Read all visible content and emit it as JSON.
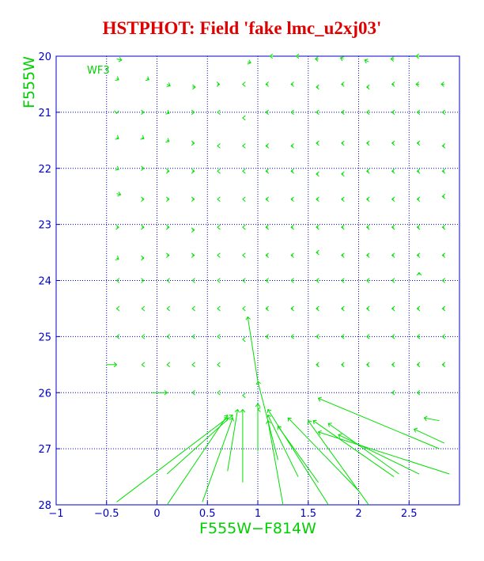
{
  "title": "HSTPHOT: Field 'fake lmc_u2xj03'",
  "colors": {
    "title": "#e00000",
    "axes": "#0000c8",
    "data": "#00e000",
    "labels": "#00d000"
  },
  "chart_data": {
    "type": "scatter",
    "panel_label": "WF3",
    "xlabel": "F555W−F814W",
    "ylabel": "F555W",
    "xlim": [
      -1,
      3
    ],
    "ylim": [
      28,
      20
    ],
    "x_ticks": [
      "−1",
      "−0.5",
      "0",
      "0.5",
      "1",
      "1.5",
      "2",
      "2.5"
    ],
    "y_ticks": [
      "20",
      "21",
      "22",
      "23",
      "24",
      "25",
      "26",
      "27",
      "28"
    ],
    "grid": true,
    "marker": "chevron",
    "vectors": [
      {
        "x": -0.4,
        "y": 20.05,
        "dx": 0.05,
        "dy": 0.02
      },
      {
        "x": 0.9,
        "y": 20.1,
        "dx": 0.03,
        "dy": 0.02
      },
      {
        "x": 1.15,
        "y": 20.0,
        "dx": -0.03,
        "dy": 0.0
      },
      {
        "x": 1.4,
        "y": 20.0,
        "dx": -0.02,
        "dy": 0.0
      },
      {
        "x": 1.6,
        "y": 20.05,
        "dx": -0.03,
        "dy": 0.0
      },
      {
        "x": 1.85,
        "y": 20.05,
        "dx": -0.03,
        "dy": -0.02
      },
      {
        "x": 2.1,
        "y": 20.1,
        "dx": -0.04,
        "dy": -0.03
      },
      {
        "x": 2.35,
        "y": 20.05,
        "dx": -0.03,
        "dy": 0.0
      },
      {
        "x": 2.6,
        "y": 20.0,
        "dx": -0.03,
        "dy": 0.0
      },
      {
        "x": -0.4,
        "y": 20.4,
        "dx": 0.02,
        "dy": 0.02
      },
      {
        "x": -0.1,
        "y": 20.4,
        "dx": 0.02,
        "dy": 0.02
      },
      {
        "x": 0.1,
        "y": 20.5,
        "dx": 0.03,
        "dy": 0.03
      },
      {
        "x": 0.35,
        "y": 20.55,
        "dx": 0.03,
        "dy": 0.0
      },
      {
        "x": 0.6,
        "y": 20.5,
        "dx": 0.02,
        "dy": 0.0
      },
      {
        "x": 0.85,
        "y": 20.5,
        "dx": 0.0,
        "dy": 0.0
      },
      {
        "x": 1.1,
        "y": 20.5,
        "dx": -0.02,
        "dy": 0.0
      },
      {
        "x": 1.35,
        "y": 20.5,
        "dx": -0.02,
        "dy": 0.0
      },
      {
        "x": 1.6,
        "y": 20.55,
        "dx": -0.02,
        "dy": 0.0
      },
      {
        "x": 1.85,
        "y": 20.5,
        "dx": -0.02,
        "dy": 0.0
      },
      {
        "x": 2.1,
        "y": 20.55,
        "dx": -0.02,
        "dy": 0.0
      },
      {
        "x": 2.35,
        "y": 20.5,
        "dx": -0.02,
        "dy": 0.0
      },
      {
        "x": 2.6,
        "y": 20.5,
        "dx": -0.03,
        "dy": 0.0
      },
      {
        "x": 2.85,
        "y": 20.5,
        "dx": -0.03,
        "dy": 0.0
      },
      {
        "x": -0.4,
        "y": 21.0,
        "dx": 0.0,
        "dy": 0.02
      },
      {
        "x": -0.15,
        "y": 21.0,
        "dx": 0.02,
        "dy": 0.0
      },
      {
        "x": 0.1,
        "y": 21.0,
        "dx": 0.02,
        "dy": 0.02
      },
      {
        "x": 0.35,
        "y": 21.0,
        "dx": 0.02,
        "dy": 0.0
      },
      {
        "x": 0.6,
        "y": 21.0,
        "dx": 0.0,
        "dy": 0.0
      },
      {
        "x": 0.85,
        "y": 21.1,
        "dx": 0.0,
        "dy": 0.0
      },
      {
        "x": 1.1,
        "y": 21.0,
        "dx": -0.02,
        "dy": 0.0
      },
      {
        "x": 1.35,
        "y": 21.0,
        "dx": -0.02,
        "dy": 0.0
      },
      {
        "x": 1.6,
        "y": 21.0,
        "dx": -0.02,
        "dy": 0.0
      },
      {
        "x": 1.85,
        "y": 21.0,
        "dx": -0.02,
        "dy": 0.0
      },
      {
        "x": 2.1,
        "y": 21.0,
        "dx": -0.02,
        "dy": 0.0
      },
      {
        "x": 2.35,
        "y": 21.0,
        "dx": -0.02,
        "dy": 0.0
      },
      {
        "x": 2.6,
        "y": 21.0,
        "dx": -0.02,
        "dy": 0.0
      },
      {
        "x": 2.85,
        "y": 21.0,
        "dx": -0.02,
        "dy": 0.0
      },
      {
        "x": -0.4,
        "y": 21.45,
        "dx": 0.02,
        "dy": 0.02
      },
      {
        "x": -0.15,
        "y": 21.45,
        "dx": 0.02,
        "dy": 0.02
      },
      {
        "x": 0.1,
        "y": 21.5,
        "dx": 0.02,
        "dy": 0.02
      },
      {
        "x": 0.35,
        "y": 21.55,
        "dx": 0.02,
        "dy": 0.0
      },
      {
        "x": 0.6,
        "y": 21.6,
        "dx": 0.0,
        "dy": 0.0
      },
      {
        "x": 0.85,
        "y": 21.6,
        "dx": 0.0,
        "dy": 0.0
      },
      {
        "x": 1.1,
        "y": 21.6,
        "dx": -0.02,
        "dy": 0.0
      },
      {
        "x": 1.35,
        "y": 21.6,
        "dx": -0.02,
        "dy": 0.0
      },
      {
        "x": 1.6,
        "y": 21.55,
        "dx": -0.02,
        "dy": 0.0
      },
      {
        "x": 1.85,
        "y": 21.55,
        "dx": -0.02,
        "dy": 0.0
      },
      {
        "x": 2.1,
        "y": 21.55,
        "dx": -0.02,
        "dy": 0.0
      },
      {
        "x": 2.35,
        "y": 21.55,
        "dx": -0.02,
        "dy": 0.0
      },
      {
        "x": 2.6,
        "y": 21.55,
        "dx": -0.02,
        "dy": 0.0
      },
      {
        "x": 2.85,
        "y": 21.6,
        "dx": -0.02,
        "dy": 0.0
      },
      {
        "x": -0.4,
        "y": 22.0,
        "dx": 0.02,
        "dy": 0.02
      },
      {
        "x": -0.15,
        "y": 22.0,
        "dx": 0.02,
        "dy": 0.0
      },
      {
        "x": 0.1,
        "y": 22.05,
        "dx": 0.02,
        "dy": 0.0
      },
      {
        "x": 0.35,
        "y": 22.05,
        "dx": 0.02,
        "dy": 0.0
      },
      {
        "x": 0.6,
        "y": 22.05,
        "dx": 0.0,
        "dy": 0.0
      },
      {
        "x": 0.85,
        "y": 22.05,
        "dx": 0.0,
        "dy": 0.0
      },
      {
        "x": 1.1,
        "y": 22.05,
        "dx": -0.02,
        "dy": 0.0
      },
      {
        "x": 1.35,
        "y": 22.05,
        "dx": -0.02,
        "dy": 0.0
      },
      {
        "x": 1.6,
        "y": 22.1,
        "dx": -0.02,
        "dy": 0.0
      },
      {
        "x": 1.85,
        "y": 22.1,
        "dx": -0.02,
        "dy": 0.0
      },
      {
        "x": 2.1,
        "y": 22.05,
        "dx": -0.02,
        "dy": 0.0
      },
      {
        "x": 2.35,
        "y": 22.05,
        "dx": -0.02,
        "dy": 0.0
      },
      {
        "x": 2.6,
        "y": 22.05,
        "dx": -0.02,
        "dy": 0.0
      },
      {
        "x": 2.85,
        "y": 22.05,
        "dx": -0.02,
        "dy": 0.0
      },
      {
        "x": -0.4,
        "y": 22.45,
        "dx": 0.04,
        "dy": 0.02
      },
      {
        "x": -0.15,
        "y": 22.55,
        "dx": 0.02,
        "dy": 0.0
      },
      {
        "x": 0.1,
        "y": 22.55,
        "dx": 0.02,
        "dy": 0.0
      },
      {
        "x": 0.35,
        "y": 22.55,
        "dx": 0.02,
        "dy": 0.0
      },
      {
        "x": 0.6,
        "y": 22.55,
        "dx": 0.0,
        "dy": 0.0
      },
      {
        "x": 0.85,
        "y": 22.55,
        "dx": 0.0,
        "dy": 0.0
      },
      {
        "x": 1.1,
        "y": 22.55,
        "dx": -0.02,
        "dy": 0.0
      },
      {
        "x": 1.35,
        "y": 22.55,
        "dx": -0.02,
        "dy": 0.0
      },
      {
        "x": 1.6,
        "y": 22.55,
        "dx": -0.02,
        "dy": 0.0
      },
      {
        "x": 1.85,
        "y": 22.55,
        "dx": -0.02,
        "dy": 0.0
      },
      {
        "x": 2.1,
        "y": 22.55,
        "dx": -0.02,
        "dy": 0.0
      },
      {
        "x": 2.35,
        "y": 22.55,
        "dx": -0.02,
        "dy": 0.0
      },
      {
        "x": 2.6,
        "y": 22.55,
        "dx": -0.02,
        "dy": 0.0
      },
      {
        "x": 2.85,
        "y": 22.5,
        "dx": -0.02,
        "dy": 0.0
      },
      {
        "x": -0.4,
        "y": 23.05,
        "dx": 0.02,
        "dy": 0.0
      },
      {
        "x": -0.15,
        "y": 23.05,
        "dx": 0.02,
        "dy": 0.0
      },
      {
        "x": 0.1,
        "y": 23.05,
        "dx": 0.02,
        "dy": 0.0
      },
      {
        "x": 0.35,
        "y": 23.1,
        "dx": 0.02,
        "dy": 0.0
      },
      {
        "x": 0.6,
        "y": 23.05,
        "dx": 0.0,
        "dy": 0.0
      },
      {
        "x": 0.85,
        "y": 23.05,
        "dx": 0.0,
        "dy": 0.0
      },
      {
        "x": 1.1,
        "y": 23.05,
        "dx": -0.02,
        "dy": 0.0
      },
      {
        "x": 1.35,
        "y": 23.05,
        "dx": -0.02,
        "dy": 0.0
      },
      {
        "x": 1.6,
        "y": 23.05,
        "dx": -0.02,
        "dy": 0.0
      },
      {
        "x": 1.85,
        "y": 23.05,
        "dx": -0.02,
        "dy": 0.0
      },
      {
        "x": 2.1,
        "y": 23.05,
        "dx": -0.02,
        "dy": 0.0
      },
      {
        "x": 2.35,
        "y": 23.05,
        "dx": -0.02,
        "dy": 0.0
      },
      {
        "x": 2.6,
        "y": 23.05,
        "dx": -0.02,
        "dy": 0.0
      },
      {
        "x": 2.85,
        "y": 23.05,
        "dx": -0.02,
        "dy": 0.0
      },
      {
        "x": -0.4,
        "y": 23.6,
        "dx": 0.02,
        "dy": 0.02
      },
      {
        "x": -0.15,
        "y": 23.6,
        "dx": 0.02,
        "dy": 0.0
      },
      {
        "x": 0.1,
        "y": 23.55,
        "dx": 0.02,
        "dy": 0.0
      },
      {
        "x": 0.35,
        "y": 23.55,
        "dx": 0.02,
        "dy": 0.0
      },
      {
        "x": 0.6,
        "y": 23.55,
        "dx": 0.0,
        "dy": 0.0
      },
      {
        "x": 0.85,
        "y": 23.55,
        "dx": 0.0,
        "dy": 0.0
      },
      {
        "x": 1.1,
        "y": 23.55,
        "dx": -0.02,
        "dy": 0.0
      },
      {
        "x": 1.35,
        "y": 23.55,
        "dx": -0.02,
        "dy": 0.0
      },
      {
        "x": 1.6,
        "y": 23.5,
        "dx": -0.02,
        "dy": 0.0
      },
      {
        "x": 1.85,
        "y": 23.55,
        "dx": -0.02,
        "dy": 0.0
      },
      {
        "x": 2.1,
        "y": 23.55,
        "dx": -0.02,
        "dy": 0.0
      },
      {
        "x": 2.35,
        "y": 23.55,
        "dx": -0.02,
        "dy": 0.0
      },
      {
        "x": 2.6,
        "y": 23.55,
        "dx": -0.02,
        "dy": 0.0
      },
      {
        "x": 2.85,
        "y": 23.55,
        "dx": -0.02,
        "dy": 0.0
      },
      {
        "x": -0.4,
        "y": 24.0,
        "dx": 0.0,
        "dy": 0.0
      },
      {
        "x": -0.15,
        "y": 24.0,
        "dx": 0.02,
        "dy": 0.0
      },
      {
        "x": 0.1,
        "y": 24.0,
        "dx": 0.0,
        "dy": 0.0
      },
      {
        "x": 0.35,
        "y": 24.0,
        "dx": 0.0,
        "dy": 0.0
      },
      {
        "x": 0.6,
        "y": 24.0,
        "dx": 0.0,
        "dy": 0.0
      },
      {
        "x": 0.85,
        "y": 24.0,
        "dx": 0.0,
        "dy": 0.0
      },
      {
        "x": 1.1,
        "y": 24.0,
        "dx": -0.02,
        "dy": 0.0
      },
      {
        "x": 1.35,
        "y": 24.0,
        "dx": -0.02,
        "dy": 0.0
      },
      {
        "x": 1.6,
        "y": 24.0,
        "dx": -0.02,
        "dy": 0.0
      },
      {
        "x": 1.85,
        "y": 24.0,
        "dx": -0.02,
        "dy": 0.0
      },
      {
        "x": 2.1,
        "y": 24.0,
        "dx": -0.02,
        "dy": 0.0
      },
      {
        "x": 2.35,
        "y": 24.0,
        "dx": -0.02,
        "dy": 0.0
      },
      {
        "x": 2.6,
        "y": 23.9,
        "dx": 0.0,
        "dy": -0.04
      },
      {
        "x": 2.85,
        "y": 24.0,
        "dx": -0.02,
        "dy": 0.0
      },
      {
        "x": -0.4,
        "y": 24.5,
        "dx": 0.0,
        "dy": 0.0
      },
      {
        "x": -0.15,
        "y": 24.5,
        "dx": 0.0,
        "dy": 0.0
      },
      {
        "x": 0.1,
        "y": 24.5,
        "dx": 0.0,
        "dy": 0.0
      },
      {
        "x": 0.35,
        "y": 24.5,
        "dx": 0.0,
        "dy": 0.0
      },
      {
        "x": 0.6,
        "y": 24.5,
        "dx": 0.0,
        "dy": 0.0
      },
      {
        "x": 0.85,
        "y": 24.5,
        "dx": 0.0,
        "dy": 0.0
      },
      {
        "x": 1.1,
        "y": 24.5,
        "dx": -0.02,
        "dy": 0.0
      },
      {
        "x": 1.35,
        "y": 24.5,
        "dx": -0.02,
        "dy": 0.0
      },
      {
        "x": 1.6,
        "y": 24.5,
        "dx": -0.02,
        "dy": 0.0
      },
      {
        "x": 1.85,
        "y": 24.5,
        "dx": -0.02,
        "dy": 0.0
      },
      {
        "x": 2.1,
        "y": 24.5,
        "dx": -0.02,
        "dy": 0.0
      },
      {
        "x": 2.35,
        "y": 24.5,
        "dx": -0.02,
        "dy": 0.0
      },
      {
        "x": 2.6,
        "y": 24.5,
        "dx": -0.02,
        "dy": 0.0
      },
      {
        "x": 2.85,
        "y": 24.5,
        "dx": -0.02,
        "dy": 0.0
      },
      {
        "x": -0.4,
        "y": 25.0,
        "dx": 0.0,
        "dy": 0.0
      },
      {
        "x": -0.15,
        "y": 25.0,
        "dx": 0.0,
        "dy": 0.0
      },
      {
        "x": 0.1,
        "y": 25.0,
        "dx": 0.0,
        "dy": 0.0
      },
      {
        "x": 0.35,
        "y": 25.0,
        "dx": 0.0,
        "dy": 0.0
      },
      {
        "x": 0.6,
        "y": 25.0,
        "dx": 0.0,
        "dy": 0.0
      },
      {
        "x": 0.85,
        "y": 25.05,
        "dx": 0.0,
        "dy": 0.0
      },
      {
        "x": 1.1,
        "y": 25.0,
        "dx": -0.02,
        "dy": 0.0
      },
      {
        "x": 1.35,
        "y": 25.0,
        "dx": -0.02,
        "dy": 0.0
      },
      {
        "x": 1.6,
        "y": 25.0,
        "dx": -0.02,
        "dy": 0.0
      },
      {
        "x": 1.85,
        "y": 25.0,
        "dx": -0.02,
        "dy": 0.0
      },
      {
        "x": 2.1,
        "y": 25.0,
        "dx": -0.02,
        "dy": 0.0
      },
      {
        "x": 2.35,
        "y": 25.0,
        "dx": -0.02,
        "dy": 0.0
      },
      {
        "x": 2.6,
        "y": 25.0,
        "dx": -0.02,
        "dy": 0.0
      },
      {
        "x": 2.85,
        "y": 25.0,
        "dx": -0.02,
        "dy": 0.0
      },
      {
        "x": -0.5,
        "y": 25.5,
        "dx": 0.1,
        "dy": 0.0
      },
      {
        "x": -0.15,
        "y": 25.5,
        "dx": 0.0,
        "dy": 0.0
      },
      {
        "x": 0.1,
        "y": 25.5,
        "dx": 0.0,
        "dy": 0.0
      },
      {
        "x": 0.35,
        "y": 25.5,
        "dx": 0.0,
        "dy": 0.0
      },
      {
        "x": 0.6,
        "y": 25.5,
        "dx": 0.0,
        "dy": 0.0
      },
      {
        "x": 1.6,
        "y": 25.5,
        "dx": -0.02,
        "dy": 0.0
      },
      {
        "x": 1.85,
        "y": 25.5,
        "dx": -0.02,
        "dy": 0.0
      },
      {
        "x": 2.1,
        "y": 25.5,
        "dx": -0.02,
        "dy": 0.0
      },
      {
        "x": 2.35,
        "y": 25.5,
        "dx": -0.02,
        "dy": 0.0
      },
      {
        "x": 2.6,
        "y": 25.5,
        "dx": -0.02,
        "dy": 0.0
      },
      {
        "x": 2.85,
        "y": 25.5,
        "dx": -0.02,
        "dy": 0.0
      },
      {
        "x": -0.05,
        "y": 26.0,
        "dx": 0.15,
        "dy": 0.0
      },
      {
        "x": 0.35,
        "y": 26.0,
        "dx": 0.0,
        "dy": 0.0
      },
      {
        "x": 0.6,
        "y": 26.0,
        "dx": 0.0,
        "dy": 0.0
      },
      {
        "x": 2.35,
        "y": 26.0,
        "dx": -0.02,
        "dy": 0.0
      },
      {
        "x": 2.6,
        "y": 26.0,
        "dx": -0.02,
        "dy": 0.0
      },
      {
        "x": -0.4,
        "y": 27.95,
        "dx": 1.1,
        "dy": -1.5
      },
      {
        "x": 0.1,
        "y": 28.0,
        "dx": 0.6,
        "dy": -1.6
      },
      {
        "x": 0.1,
        "y": 27.45,
        "dx": 0.65,
        "dy": -1.05
      },
      {
        "x": 0.45,
        "y": 27.95,
        "dx": 0.3,
        "dy": -1.5
      },
      {
        "x": 0.7,
        "y": 27.4,
        "dx": 0.1,
        "dy": -1.1
      },
      {
        "x": 0.85,
        "y": 27.6,
        "dx": 0.0,
        "dy": -1.3
      },
      {
        "x": 1.0,
        "y": 27.05,
        "dx": 0.0,
        "dy": -0.85
      },
      {
        "x": 0.85,
        "y": 26.05,
        "dx": 0.0,
        "dy": 0.0
      },
      {
        "x": 1.0,
        "y": 25.8,
        "dx": -0.1,
        "dy": -1.15
      },
      {
        "x": 1.2,
        "y": 27.2,
        "dx": -0.2,
        "dy": -1.4
      },
      {
        "x": 1.4,
        "y": 27.5,
        "dx": -0.3,
        "dy": -1.1
      },
      {
        "x": 1.25,
        "y": 28.0,
        "dx": -0.15,
        "dy": -1.5
      },
      {
        "x": 1.7,
        "y": 28.0,
        "dx": -0.6,
        "dy": -1.7
      },
      {
        "x": 1.6,
        "y": 27.6,
        "dx": -0.4,
        "dy": -1.0
      },
      {
        "x": 2.0,
        "y": 27.75,
        "dx": -0.7,
        "dy": -1.3
      },
      {
        "x": 2.1,
        "y": 28.0,
        "dx": -0.6,
        "dy": -1.5
      },
      {
        "x": 2.35,
        "y": 27.5,
        "dx": -0.8,
        "dy": -1.0
      },
      {
        "x": 2.4,
        "y": 27.45,
        "dx": -0.7,
        "dy": -0.9
      },
      {
        "x": 2.6,
        "y": 27.45,
        "dx": -0.8,
        "dy": -0.7
      },
      {
        "x": 2.9,
        "y": 27.45,
        "dx": -1.3,
        "dy": -0.75
      },
      {
        "x": 2.8,
        "y": 27.0,
        "dx": -1.2,
        "dy": -0.9
      },
      {
        "x": 2.85,
        "y": 26.9,
        "dx": -0.3,
        "dy": -0.25
      },
      {
        "x": 2.8,
        "y": 26.5,
        "dx": -0.15,
        "dy": -0.05
      },
      {
        "x": 1.0,
        "y": 26.3,
        "dx": 0.0,
        "dy": 0.0
      }
    ]
  }
}
